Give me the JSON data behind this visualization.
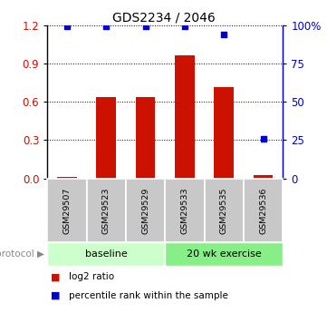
{
  "title": "GDS2234 / 2046",
  "samples": [
    "GSM29507",
    "GSM29523",
    "GSM29529",
    "GSM29533",
    "GSM29535",
    "GSM29536"
  ],
  "log2_ratio": [
    0.01,
    0.635,
    0.635,
    0.965,
    0.715,
    0.025
  ],
  "percentile_rank": [
    99.0,
    99.0,
    99.0,
    99.0,
    94.0,
    26.0
  ],
  "bar_color": "#cc1100",
  "dot_color": "#0000cc",
  "left_ylim": [
    0,
    1.2
  ],
  "right_ylim": [
    0,
    100
  ],
  "left_yticks": [
    0,
    0.3,
    0.6,
    0.9,
    1.2
  ],
  "right_yticks": [
    0,
    25,
    50,
    75,
    100
  ],
  "right_yticklabels": [
    "0",
    "25",
    "50",
    "75",
    "100%"
  ],
  "groups": [
    {
      "label": "baseline",
      "start": 0,
      "end": 3,
      "color": "#ccffcc"
    },
    {
      "label": "20 wk exercise",
      "start": 3,
      "end": 6,
      "color": "#88ee88"
    }
  ],
  "protocol_label": "protocol",
  "legend_items": [
    {
      "label": "log2 ratio",
      "color": "#cc1100"
    },
    {
      "label": "percentile rank within the sample",
      "color": "#0000cc"
    }
  ],
  "bg_color": "#ffffff",
  "tick_label_color_left": "#cc1100",
  "tick_label_color_right": "#0000cc",
  "bar_width": 0.5,
  "sample_box_color": "#c8c8c8",
  "grid_color": "#555555"
}
